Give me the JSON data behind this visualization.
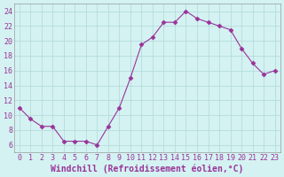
{
  "x": [
    0,
    1,
    2,
    3,
    4,
    5,
    6,
    7,
    8,
    9,
    10,
    11,
    12,
    13,
    14,
    15,
    16,
    17,
    18,
    19,
    20,
    21,
    22,
    23
  ],
  "y": [
    11,
    9.5,
    8.5,
    8.5,
    6.5,
    6.5,
    6.5,
    6,
    8.5,
    11,
    15,
    19.5,
    20.5,
    22.5,
    22.5,
    24,
    23,
    22.5,
    22,
    21.5,
    19,
    17,
    15.5,
    16
  ],
  "line_color": "#993399",
  "marker": "D",
  "marker_size": 2.5,
  "bg_color": "#d4f2f2",
  "grid_color": "#b0d8d8",
  "xlabel": "Windchill (Refroidissement éolien,°C)",
  "xlabel_color": "#993399",
  "ylim": [
    5,
    25
  ],
  "xlim": [
    -0.5,
    23.5
  ],
  "yticks": [
    6,
    8,
    10,
    12,
    14,
    16,
    18,
    20,
    22,
    24
  ],
  "xticks": [
    0,
    1,
    2,
    3,
    4,
    5,
    6,
    7,
    8,
    9,
    10,
    11,
    12,
    13,
    14,
    15,
    16,
    17,
    18,
    19,
    20,
    21,
    22,
    23
  ],
  "tick_fontsize": 6,
  "xlabel_fontsize": 7,
  "spine_color": "#999999"
}
